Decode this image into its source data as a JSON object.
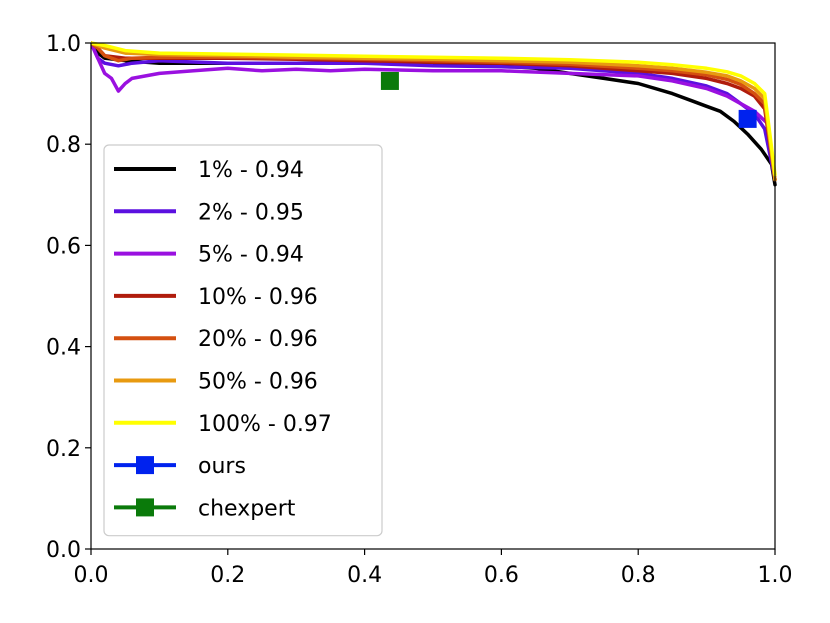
{
  "chart_data": {
    "type": "line",
    "title": "",
    "xlabel": "",
    "ylabel": "",
    "xlim": [
      0.0,
      1.0
    ],
    "ylim": [
      0.0,
      1.0
    ],
    "grid": false,
    "legend_position": "center-left",
    "x_ticks": [
      "0.0",
      "0.2",
      "0.4",
      "0.6",
      "0.8",
      "1.0"
    ],
    "y_ticks": [
      "0.0",
      "0.2",
      "0.4",
      "0.6",
      "0.8",
      "1.0"
    ],
    "series": [
      {
        "name": "1% - 0.94",
        "color": "#000000",
        "points": [
          [
            0.0,
            1.0
          ],
          [
            0.01,
            0.98
          ],
          [
            0.02,
            0.97
          ],
          [
            0.05,
            0.965
          ],
          [
            0.1,
            0.96
          ],
          [
            0.2,
            0.96
          ],
          [
            0.3,
            0.96
          ],
          [
            0.4,
            0.962
          ],
          [
            0.5,
            0.96
          ],
          [
            0.6,
            0.955
          ],
          [
            0.65,
            0.95
          ],
          [
            0.7,
            0.94
          ],
          [
            0.75,
            0.93
          ],
          [
            0.8,
            0.92
          ],
          [
            0.85,
            0.9
          ],
          [
            0.88,
            0.885
          ],
          [
            0.9,
            0.875
          ],
          [
            0.92,
            0.865
          ],
          [
            0.94,
            0.845
          ],
          [
            0.96,
            0.82
          ],
          [
            0.98,
            0.79
          ],
          [
            0.995,
            0.76
          ],
          [
            1.0,
            0.72
          ]
        ]
      },
      {
        "name": "2% - 0.95",
        "color": "#5b10e0",
        "points": [
          [
            0.0,
            1.0
          ],
          [
            0.01,
            0.97
          ],
          [
            0.02,
            0.96
          ],
          [
            0.04,
            0.955
          ],
          [
            0.06,
            0.96
          ],
          [
            0.1,
            0.965
          ],
          [
            0.2,
            0.96
          ],
          [
            0.3,
            0.96
          ],
          [
            0.4,
            0.96
          ],
          [
            0.5,
            0.955
          ],
          [
            0.6,
            0.953
          ],
          [
            0.7,
            0.95
          ],
          [
            0.8,
            0.94
          ],
          [
            0.85,
            0.93
          ],
          [
            0.9,
            0.915
          ],
          [
            0.93,
            0.9
          ],
          [
            0.95,
            0.88
          ],
          [
            0.97,
            0.86
          ],
          [
            0.985,
            0.83
          ],
          [
            1.0,
            0.73
          ]
        ]
      },
      {
        "name": "5% - 0.94",
        "color": "#9a10e0",
        "points": [
          [
            0.0,
            1.0
          ],
          [
            0.01,
            0.97
          ],
          [
            0.02,
            0.94
          ],
          [
            0.03,
            0.93
          ],
          [
            0.04,
            0.905
          ],
          [
            0.05,
            0.92
          ],
          [
            0.06,
            0.93
          ],
          [
            0.08,
            0.935
          ],
          [
            0.1,
            0.94
          ],
          [
            0.15,
            0.945
          ],
          [
            0.2,
            0.95
          ],
          [
            0.25,
            0.945
          ],
          [
            0.3,
            0.948
          ],
          [
            0.35,
            0.945
          ],
          [
            0.4,
            0.948
          ],
          [
            0.5,
            0.945
          ],
          [
            0.6,
            0.945
          ],
          [
            0.7,
            0.94
          ],
          [
            0.8,
            0.935
          ],
          [
            0.85,
            0.925
          ],
          [
            0.9,
            0.91
          ],
          [
            0.93,
            0.895
          ],
          [
            0.95,
            0.88
          ],
          [
            0.97,
            0.865
          ],
          [
            0.99,
            0.84
          ],
          [
            1.0,
            0.73
          ]
        ]
      },
      {
        "name": "10% - 0.96",
        "color": "#b01c0c",
        "points": [
          [
            0.0,
            1.0
          ],
          [
            0.01,
            0.99
          ],
          [
            0.02,
            0.975
          ],
          [
            0.05,
            0.97
          ],
          [
            0.1,
            0.97
          ],
          [
            0.2,
            0.97
          ],
          [
            0.3,
            0.968
          ],
          [
            0.4,
            0.965
          ],
          [
            0.5,
            0.962
          ],
          [
            0.6,
            0.96
          ],
          [
            0.7,
            0.955
          ],
          [
            0.8,
            0.945
          ],
          [
            0.85,
            0.94
          ],
          [
            0.9,
            0.93
          ],
          [
            0.93,
            0.92
          ],
          [
            0.95,
            0.91
          ],
          [
            0.97,
            0.895
          ],
          [
            0.985,
            0.87
          ],
          [
            1.0,
            0.73
          ]
        ]
      },
      {
        "name": "20% - 0.96",
        "color": "#d45010",
        "points": [
          [
            0.0,
            1.0
          ],
          [
            0.01,
            0.99
          ],
          [
            0.02,
            0.975
          ],
          [
            0.04,
            0.965
          ],
          [
            0.06,
            0.97
          ],
          [
            0.1,
            0.972
          ],
          [
            0.2,
            0.972
          ],
          [
            0.3,
            0.97
          ],
          [
            0.4,
            0.968
          ],
          [
            0.5,
            0.965
          ],
          [
            0.6,
            0.962
          ],
          [
            0.7,
            0.958
          ],
          [
            0.8,
            0.95
          ],
          [
            0.85,
            0.945
          ],
          [
            0.9,
            0.937
          ],
          [
            0.93,
            0.928
          ],
          [
            0.95,
            0.918
          ],
          [
            0.97,
            0.9
          ],
          [
            0.985,
            0.88
          ],
          [
            1.0,
            0.73
          ]
        ]
      },
      {
        "name": "50% - 0.96",
        "color": "#e89a10",
        "points": [
          [
            0.0,
            1.0
          ],
          [
            0.02,
            0.99
          ],
          [
            0.05,
            0.98
          ],
          [
            0.1,
            0.977
          ],
          [
            0.2,
            0.975
          ],
          [
            0.3,
            0.972
          ],
          [
            0.4,
            0.97
          ],
          [
            0.5,
            0.968
          ],
          [
            0.6,
            0.965
          ],
          [
            0.7,
            0.962
          ],
          [
            0.8,
            0.955
          ],
          [
            0.85,
            0.95
          ],
          [
            0.9,
            0.942
          ],
          [
            0.93,
            0.935
          ],
          [
            0.95,
            0.925
          ],
          [
            0.97,
            0.91
          ],
          [
            0.985,
            0.89
          ],
          [
            1.0,
            0.73
          ]
        ]
      },
      {
        "name": "100% - 0.97",
        "color": "#ffff00",
        "points": [
          [
            0.0,
            1.0
          ],
          [
            0.02,
            0.995
          ],
          [
            0.05,
            0.985
          ],
          [
            0.1,
            0.98
          ],
          [
            0.2,
            0.978
          ],
          [
            0.3,
            0.976
          ],
          [
            0.4,
            0.974
          ],
          [
            0.5,
            0.972
          ],
          [
            0.6,
            0.97
          ],
          [
            0.7,
            0.967
          ],
          [
            0.8,
            0.962
          ],
          [
            0.85,
            0.957
          ],
          [
            0.9,
            0.95
          ],
          [
            0.93,
            0.943
          ],
          [
            0.95,
            0.935
          ],
          [
            0.97,
            0.92
          ],
          [
            0.985,
            0.9
          ],
          [
            1.0,
            0.74
          ]
        ]
      }
    ],
    "markers": [
      {
        "name": "ours",
        "color": "#0022ee",
        "x": 0.96,
        "y": 0.85
      },
      {
        "name": "chexpert",
        "color": "#0a7a0a",
        "x": 0.437,
        "y": 0.925
      }
    ]
  }
}
